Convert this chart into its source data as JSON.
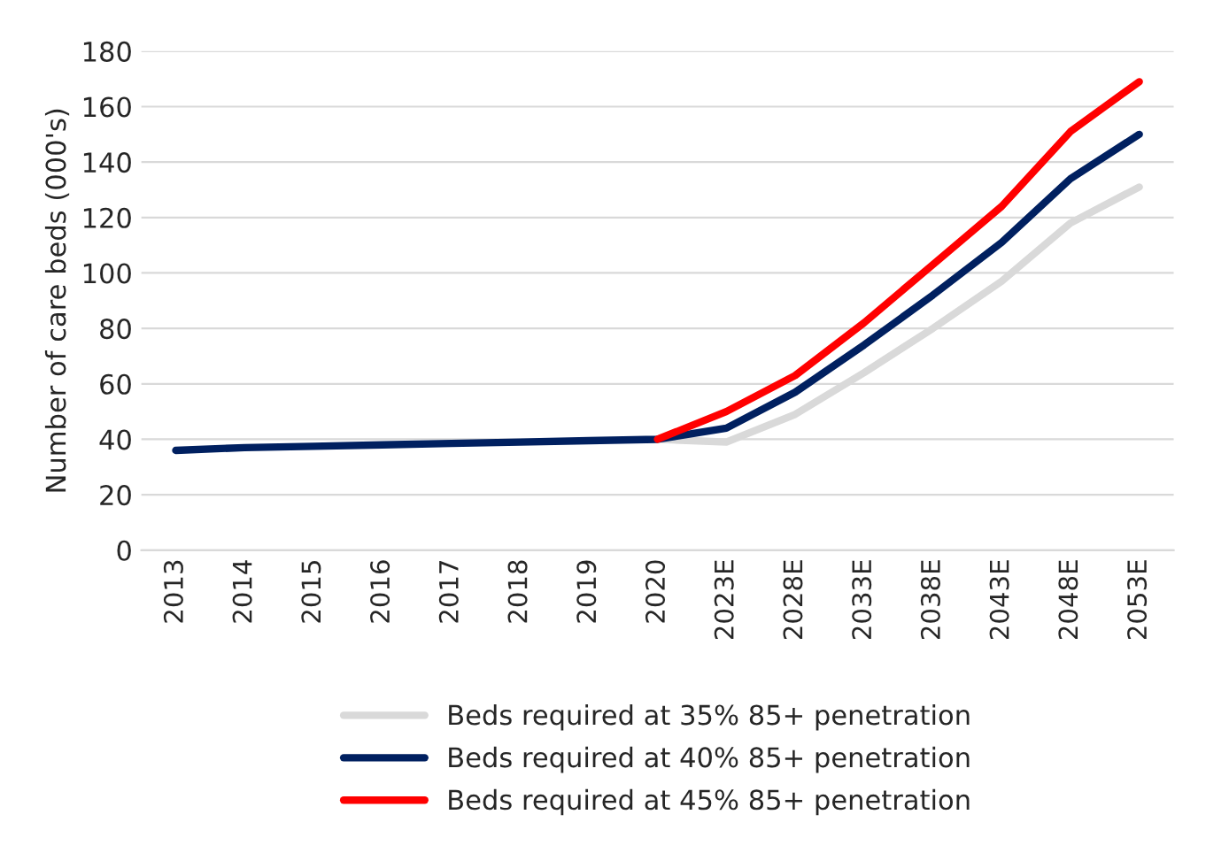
{
  "chart_data": {
    "type": "line",
    "ylabel": "Number of care beds (000's)",
    "categories": [
      "2013",
      "2014",
      "2015",
      "2016",
      "2017",
      "2018",
      "2019",
      "2020",
      "2023E",
      "2028E",
      "2033E",
      "2038E",
      "2043E",
      "2048E",
      "2053E"
    ],
    "series": [
      {
        "name": "Beds required at 35% 85+ penetration",
        "color": "#d9d9d9",
        "values": [
          null,
          null,
          null,
          null,
          null,
          null,
          null,
          40,
          39,
          49,
          64,
          80,
          97,
          118,
          131
        ]
      },
      {
        "name": "Beds required at 40% 85+ penetration",
        "color": "#002060",
        "values": [
          36,
          37,
          37.5,
          38,
          38.5,
          39,
          39.5,
          40,
          44,
          57,
          74,
          92,
          111,
          134,
          150
        ]
      },
      {
        "name": "Beds required at 45% 85+ penetration",
        "color": "#ff0000",
        "values": [
          null,
          null,
          null,
          null,
          null,
          null,
          null,
          40,
          50,
          63,
          82,
          103,
          124,
          151,
          169
        ]
      }
    ],
    "ylim": [
      0,
      180
    ],
    "yticks": [
      0,
      20,
      40,
      60,
      80,
      100,
      120,
      140,
      160,
      180
    ],
    "grid": "y",
    "legend": "bottom",
    "marker": "none",
    "line_style": "solid"
  }
}
